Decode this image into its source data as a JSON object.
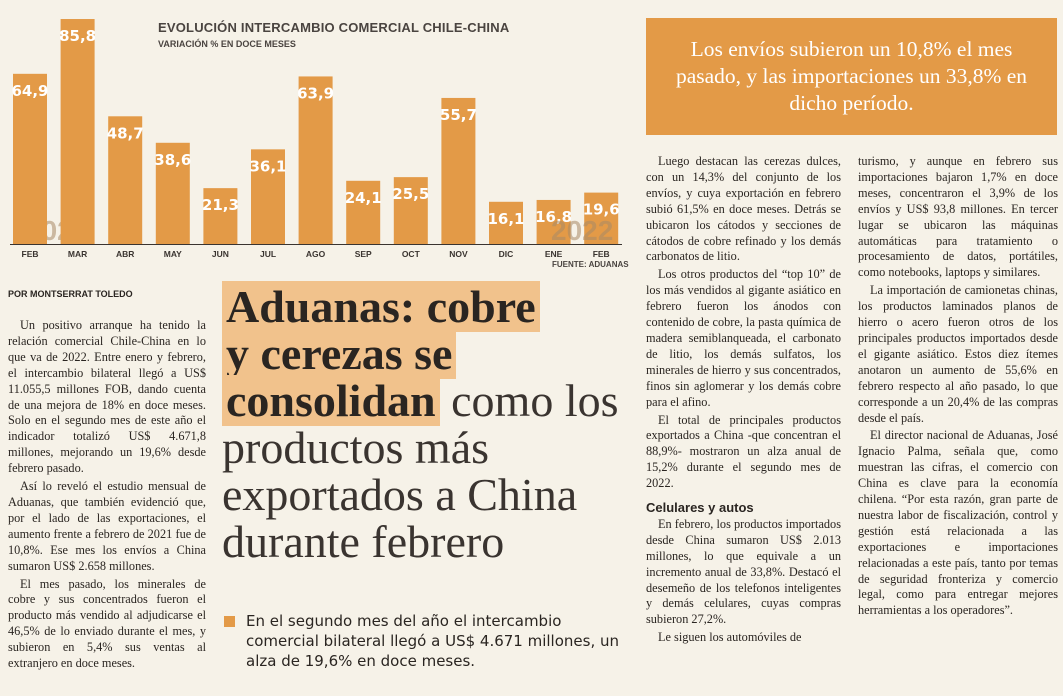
{
  "chart": {
    "title": "EVOLUCIÓN INTERCAMBIO COMERCIAL CHILE-CHINA",
    "subtitle": "VARIACIÓN % EN DOCE MESES",
    "source": "FUENTE: ADUANAS",
    "year_start": "2021",
    "year_end": "2022"
  },
  "chart_data": {
    "type": "bar",
    "title": "EVOLUCIÓN INTERCAMBIO COMERCIAL CHILE-CHINA",
    "subtitle": "VARIACIÓN % EN DOCE MESES",
    "categories": [
      "FEB",
      "MAR",
      "ABR",
      "MAY",
      "JUN",
      "JUL",
      "AGO",
      "SEP",
      "OCT",
      "NOV",
      "DIC",
      "ENE",
      "FEB"
    ],
    "values": [
      64.9,
      85.8,
      48.7,
      38.6,
      21.3,
      36.1,
      63.9,
      24.1,
      25.5,
      55.7,
      16.1,
      16.8,
      19.6
    ],
    "labels": [
      "64,9",
      "85,8",
      "48,7",
      "38,6",
      "21,3",
      "36,1",
      "63,9",
      "24,1",
      "25,5",
      "55,7",
      "16,1",
      "16,8",
      "19,6"
    ],
    "ylim": [
      0,
      90
    ],
    "grid": false,
    "bar_color": "#e39a47"
  },
  "pullquote": "Los envíos subieron un 10,8% el mes pasado, y las importaciones un 33,8% en dicho período.",
  "byline": "POR MONTSERRAT TOLEDO",
  "headline": {
    "line1": "Aduanas: cobre",
    "line2": "y cerezas se",
    "line3": "consolidan",
    "rest": "como los productos más exportados a China durante febrero"
  },
  "bullet": "En el segundo mes del año el intercambio comercial bilateral llegó a US$ 4.671 millones, un alza de 19,6% en doce meses.",
  "col1": [
    "Un positivo arranque ha tenido la relación comercial Chile-China en lo que va de 2022. Entre enero y febrero, el intercambio bilateral llegó a US$ 11.055,5 millones FOB, dando cuenta de una mejora de 18% en doce meses. Solo en el segundo mes de este año el indicador totalizó US$ 4.671,8 millones, mejorando un 19,6% desde febrero pasado.",
    "Así lo reveló el estudio mensual de Aduanas, que también evidenció que, por el lado de las exportaciones, el aumento frente a febrero de 2021 fue de 10,8%. Ese mes los envíos a China sumaron US$ 2.658 millones.",
    "El mes pasado, los minerales de cobre y sus concentrados fueron el producto más vendido al adjudicarse el 46,5% de lo enviado durante el mes, y subieron en 5,4% sus ventas al extranjero en doce meses."
  ],
  "col3": {
    "p1": "Luego destacan las cerezas dulces, con un 14,3% del conjunto de los envíos, y cuya exportación en febrero subió 61,5% en doce meses. Detrás se ubicaron los cátodos y secciones de cátodos de cobre refinado y los demás carbonatos de litio.",
    "p2": "Los otros productos del “top 10” de los más vendidos al gigante asiático en febrero fueron los ánodos con contenido de cobre, la pasta química de madera semiblanqueada, el carbonato de litio, los demás sulfatos, los minerales de hierro y sus concentrados, finos sin aglomerar y los demás cobre para el afino.",
    "p3": "El total de principales productos exportados a China -que concentran el 88,9%- mostraron un alza anual de 15,2% durante el segundo mes de 2022.",
    "subhead": "Celulares y autos",
    "p4": "En febrero, los productos importados desde China sumaron US$ 2.013 millones, lo que equivale a un incremento anual de 33,8%. Destacó el desemeño de los telefonos inteligentes y demás celulares, cuyas compras subieron 27,2%.",
    "p5": "Le siguen los automóviles de"
  },
  "col4": [
    "turismo, y aunque en febrero sus importaciones bajaron 1,7% en doce meses, concentraron el 3,9% de los envíos y US$ 93,8 millones. En tercer lugar se ubicaron las máquinas automáticas para tratamiento o procesamiento de datos, portátiles, como notebooks, laptops y similares.",
    "La importación de camionetas chinas, los productos laminados planos de hierro o acero fueron otros de los principales productos importados desde el gigante asiático. Estos diez ítemes anotaron un aumento de 55,6% en febrero respecto al año pasado, lo que corresponde a un 20,4% de las compras desde el país.",
    "El director nacional de Aduanas, José Ignacio Palma, señala que, como muestran las cifras, el comercio con China es clave para la economía chilena. “Por esta razón, gran parte de nuestra labor de fiscalización, control y gestión está relacionada a las exportaciones e importaciones relacionadas a este país, tanto por temas de seguridad fronteriza y comercio legal, como para entregar mejores herramientas a los operadores”."
  ]
}
